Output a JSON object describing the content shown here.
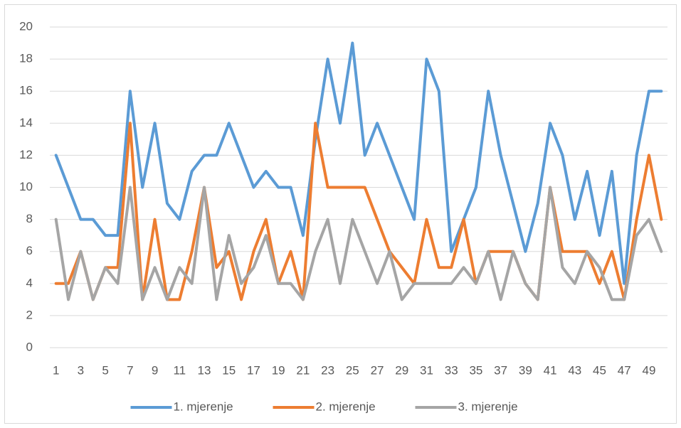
{
  "chart_data": {
    "type": "line",
    "categories": [
      1,
      null,
      3,
      null,
      5,
      null,
      7,
      null,
      9,
      null,
      11,
      null,
      13,
      null,
      15,
      null,
      17,
      null,
      19,
      null,
      21,
      null,
      23,
      null,
      25,
      null,
      27,
      null,
      29,
      null,
      31,
      null,
      33,
      null,
      35,
      null,
      37,
      null,
      39,
      null,
      41,
      null,
      43,
      null,
      45,
      null,
      47,
      null,
      49,
      null
    ],
    "series": [
      {
        "name": "1. mjerenje",
        "color": "#5b9bd5",
        "values": [
          12,
          10,
          8,
          8,
          7,
          7,
          16,
          10,
          14,
          9,
          8,
          11,
          12,
          12,
          14,
          12,
          10,
          11,
          10,
          10,
          7,
          13,
          18,
          14,
          19,
          12,
          14,
          12,
          10,
          8,
          18,
          16,
          6,
          8,
          10,
          16,
          12,
          9,
          6,
          9,
          14,
          12,
          8,
          11,
          7,
          11,
          4,
          12,
          16,
          16
        ]
      },
      {
        "name": "2. mjerenje",
        "color": "#ed7d31",
        "values": [
          4,
          4,
          6,
          3,
          5,
          5,
          14,
          3,
          8,
          3,
          3,
          6,
          10,
          5,
          6,
          3,
          6,
          8,
          4,
          6,
          3,
          14,
          10,
          10,
          10,
          10,
          8,
          6,
          5,
          4,
          8,
          5,
          5,
          8,
          4,
          6,
          6,
          6,
          4,
          3,
          10,
          6,
          6,
          6,
          4,
          6,
          3,
          8,
          12,
          8
        ]
      },
      {
        "name": "3. mjerenje",
        "color": "#a5a5a5",
        "values": [
          8,
          3,
          6,
          3,
          5,
          4,
          10,
          3,
          5,
          3,
          5,
          4,
          10,
          3,
          7,
          4,
          5,
          7,
          4,
          4,
          3,
          6,
          8,
          4,
          8,
          6,
          4,
          6,
          3,
          4,
          4,
          4,
          4,
          5,
          4,
          6,
          3,
          6,
          4,
          3,
          10,
          5,
          4,
          6,
          5,
          3,
          3,
          7,
          8,
          6
        ]
      }
    ],
    "ylim": [
      0,
      20
    ],
    "yticks": [
      0,
      2,
      4,
      6,
      8,
      10,
      12,
      14,
      16,
      18,
      20
    ],
    "grid": true,
    "legend": "bottom"
  }
}
